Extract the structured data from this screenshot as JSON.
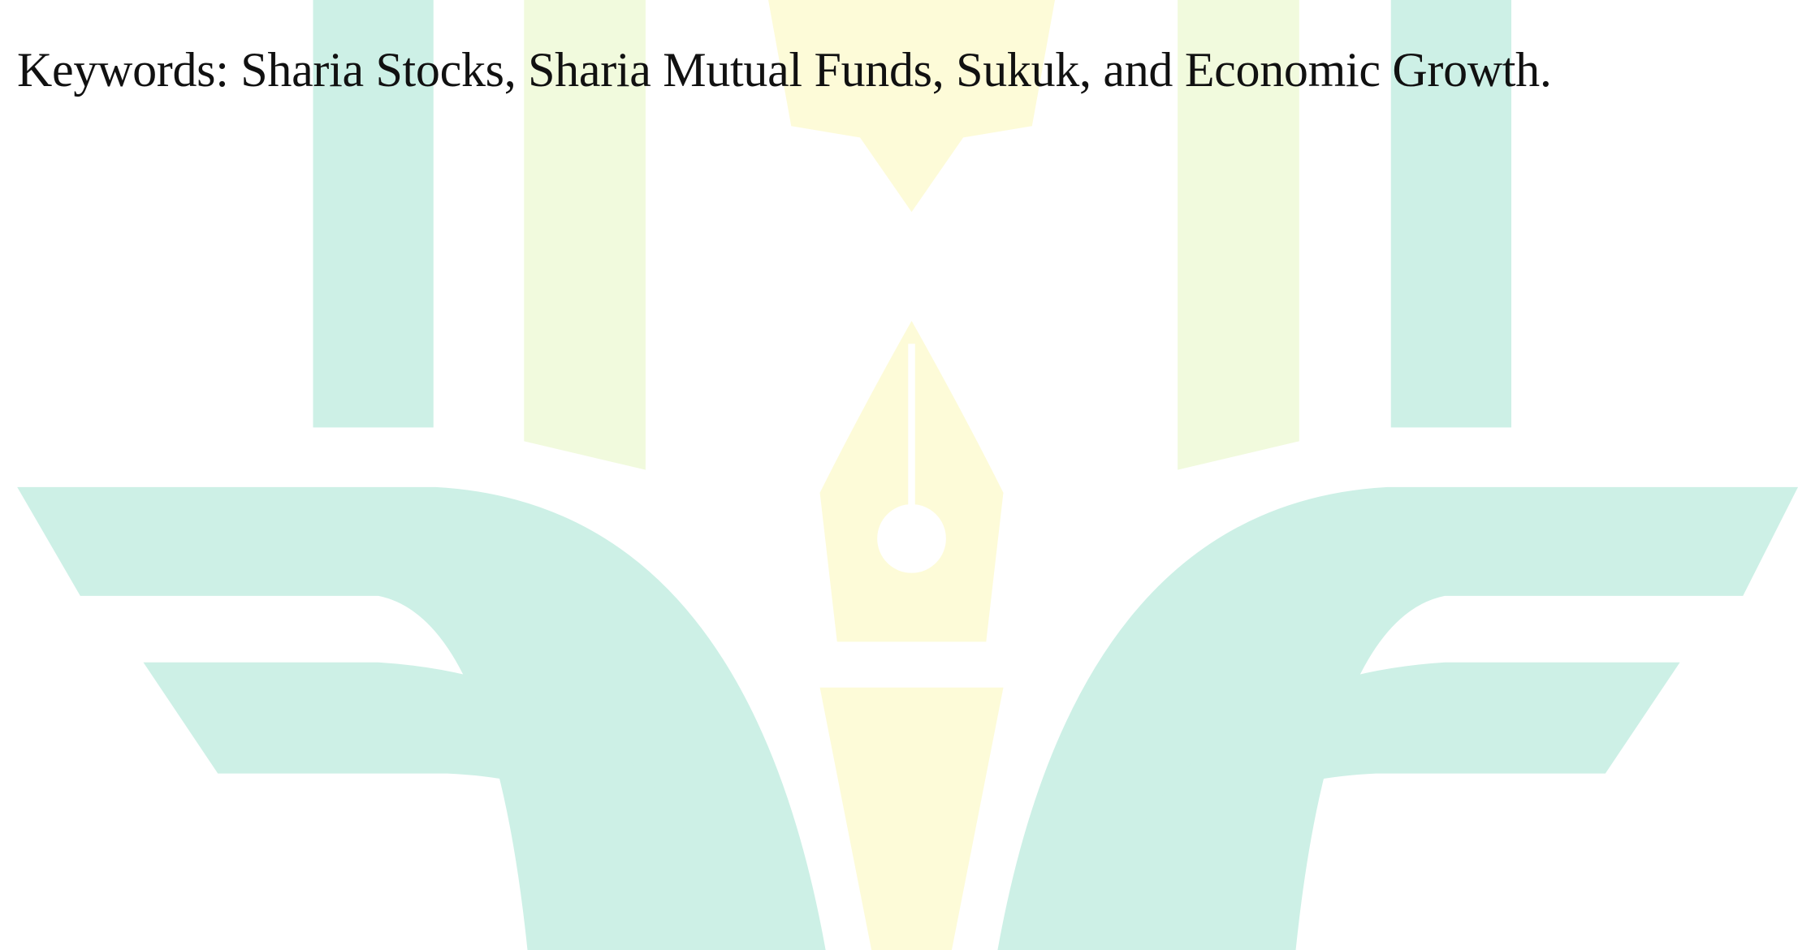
{
  "keywords": {
    "label": "Keywords:",
    "text": "Sharia Stocks, Sharia Mutual Funds, Sukuk, and Economic Growth."
  }
}
